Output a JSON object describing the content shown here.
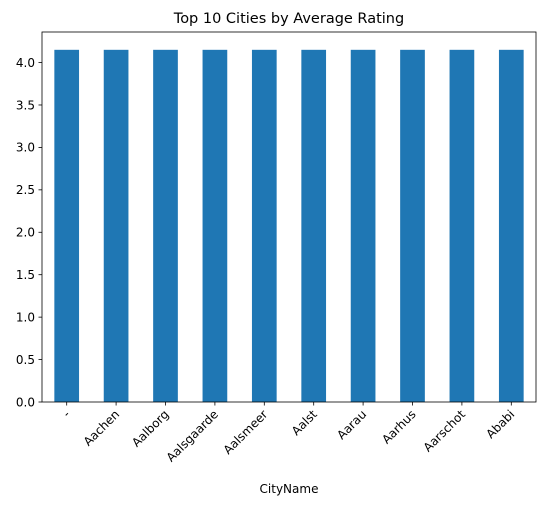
{
  "chart_data": {
    "type": "bar",
    "title": "Top 10 Cities by Average Rating",
    "xlabel": "CityName",
    "ylabel": "",
    "categories": [
      "-",
      "Aachen",
      "Aalborg",
      "Aalsgaarde",
      "Aalsmeer",
      "Aalst",
      "Aarau",
      "Aarhus",
      "Aarschot",
      "Ababi"
    ],
    "values": [
      4.15,
      4.15,
      4.15,
      4.15,
      4.15,
      4.15,
      4.15,
      4.15,
      4.15,
      4.15
    ],
    "ylim": [
      0,
      4.36
    ],
    "yticks": [
      0.0,
      0.5,
      1.0,
      1.5,
      2.0,
      2.5,
      3.0,
      3.5,
      4.0
    ],
    "ytick_labels": [
      "0.0",
      "0.5",
      "1.0",
      "1.5",
      "2.0",
      "2.5",
      "3.0",
      "3.5",
      "4.0"
    ],
    "grid": false,
    "legend": "none",
    "bar_color": "#1f77b4"
  }
}
